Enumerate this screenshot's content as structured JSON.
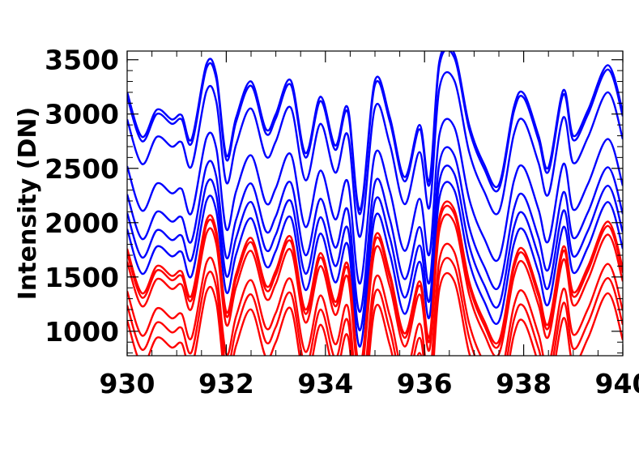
{
  "chart_data": {
    "type": "line",
    "title": "",
    "xlabel": "",
    "ylabel": "Intensity (DN)",
    "xlim": [
      930,
      940
    ],
    "ylim": [
      775,
      3580
    ],
    "grid": false,
    "x_ticks": [
      930,
      932,
      934,
      936,
      938,
      940
    ],
    "x_tick_labels": [
      "930",
      "932",
      "934",
      "936",
      "938",
      "940"
    ],
    "y_ticks": [
      1000,
      1500,
      2000,
      2500,
      3000,
      3500
    ],
    "y_tick_labels": [
      "1000",
      "1500",
      "2000",
      "2500",
      "3000",
      "3500"
    ],
    "profile": {
      "x": [
        930.0,
        930.3,
        930.6,
        930.9,
        931.1,
        931.3,
        931.6,
        931.8,
        932.0,
        932.2,
        932.5,
        932.8,
        933.0,
        933.3,
        933.6,
        933.9,
        934.2,
        934.45,
        934.7,
        935.0,
        935.3,
        935.6,
        935.9,
        936.1,
        936.3,
        936.6,
        936.9,
        937.2,
        937.5,
        937.8,
        938.0,
        938.3,
        938.5,
        938.8,
        939.0,
        939.3,
        939.7,
        940.0
      ],
      "y": [
        3200,
        2790,
        3040,
        2950,
        2990,
        2770,
        3460,
        3360,
        2620,
        2970,
        3300,
        2860,
        3000,
        3310,
        2640,
        3160,
        2710,
        3060,
        2120,
        3310,
        2970,
        2420,
        2900,
        2390,
        3490,
        3560,
        2900,
        2540,
        2350,
        3060,
        3190,
        2800,
        2510,
        3220,
        2800,
        3040,
        3450,
        3020
      ]
    },
    "series": [
      {
        "color": "#0000ff",
        "offset": 0
      },
      {
        "color": "#0000ff",
        "offset": -40
      },
      {
        "color": "#0000ff",
        "offset": -250
      },
      {
        "color": "#0000ff",
        "offset": -680
      },
      {
        "color": "#0000ff",
        "offset": -940
      },
      {
        "color": "#0000ff",
        "offset": -1110
      },
      {
        "color": "#0000ff",
        "offset": -1260
      },
      {
        "color": "#ff0000",
        "offset": -1440
      },
      {
        "color": "#ff0000",
        "offset": -1480
      },
      {
        "color": "#ff0000",
        "offset": -1560
      },
      {
        "color": "#ff0000",
        "offset": -1830
      },
      {
        "color": "#ff0000",
        "offset": -1960
      },
      {
        "color": "#ff0000",
        "offset": -2100
      }
    ]
  }
}
